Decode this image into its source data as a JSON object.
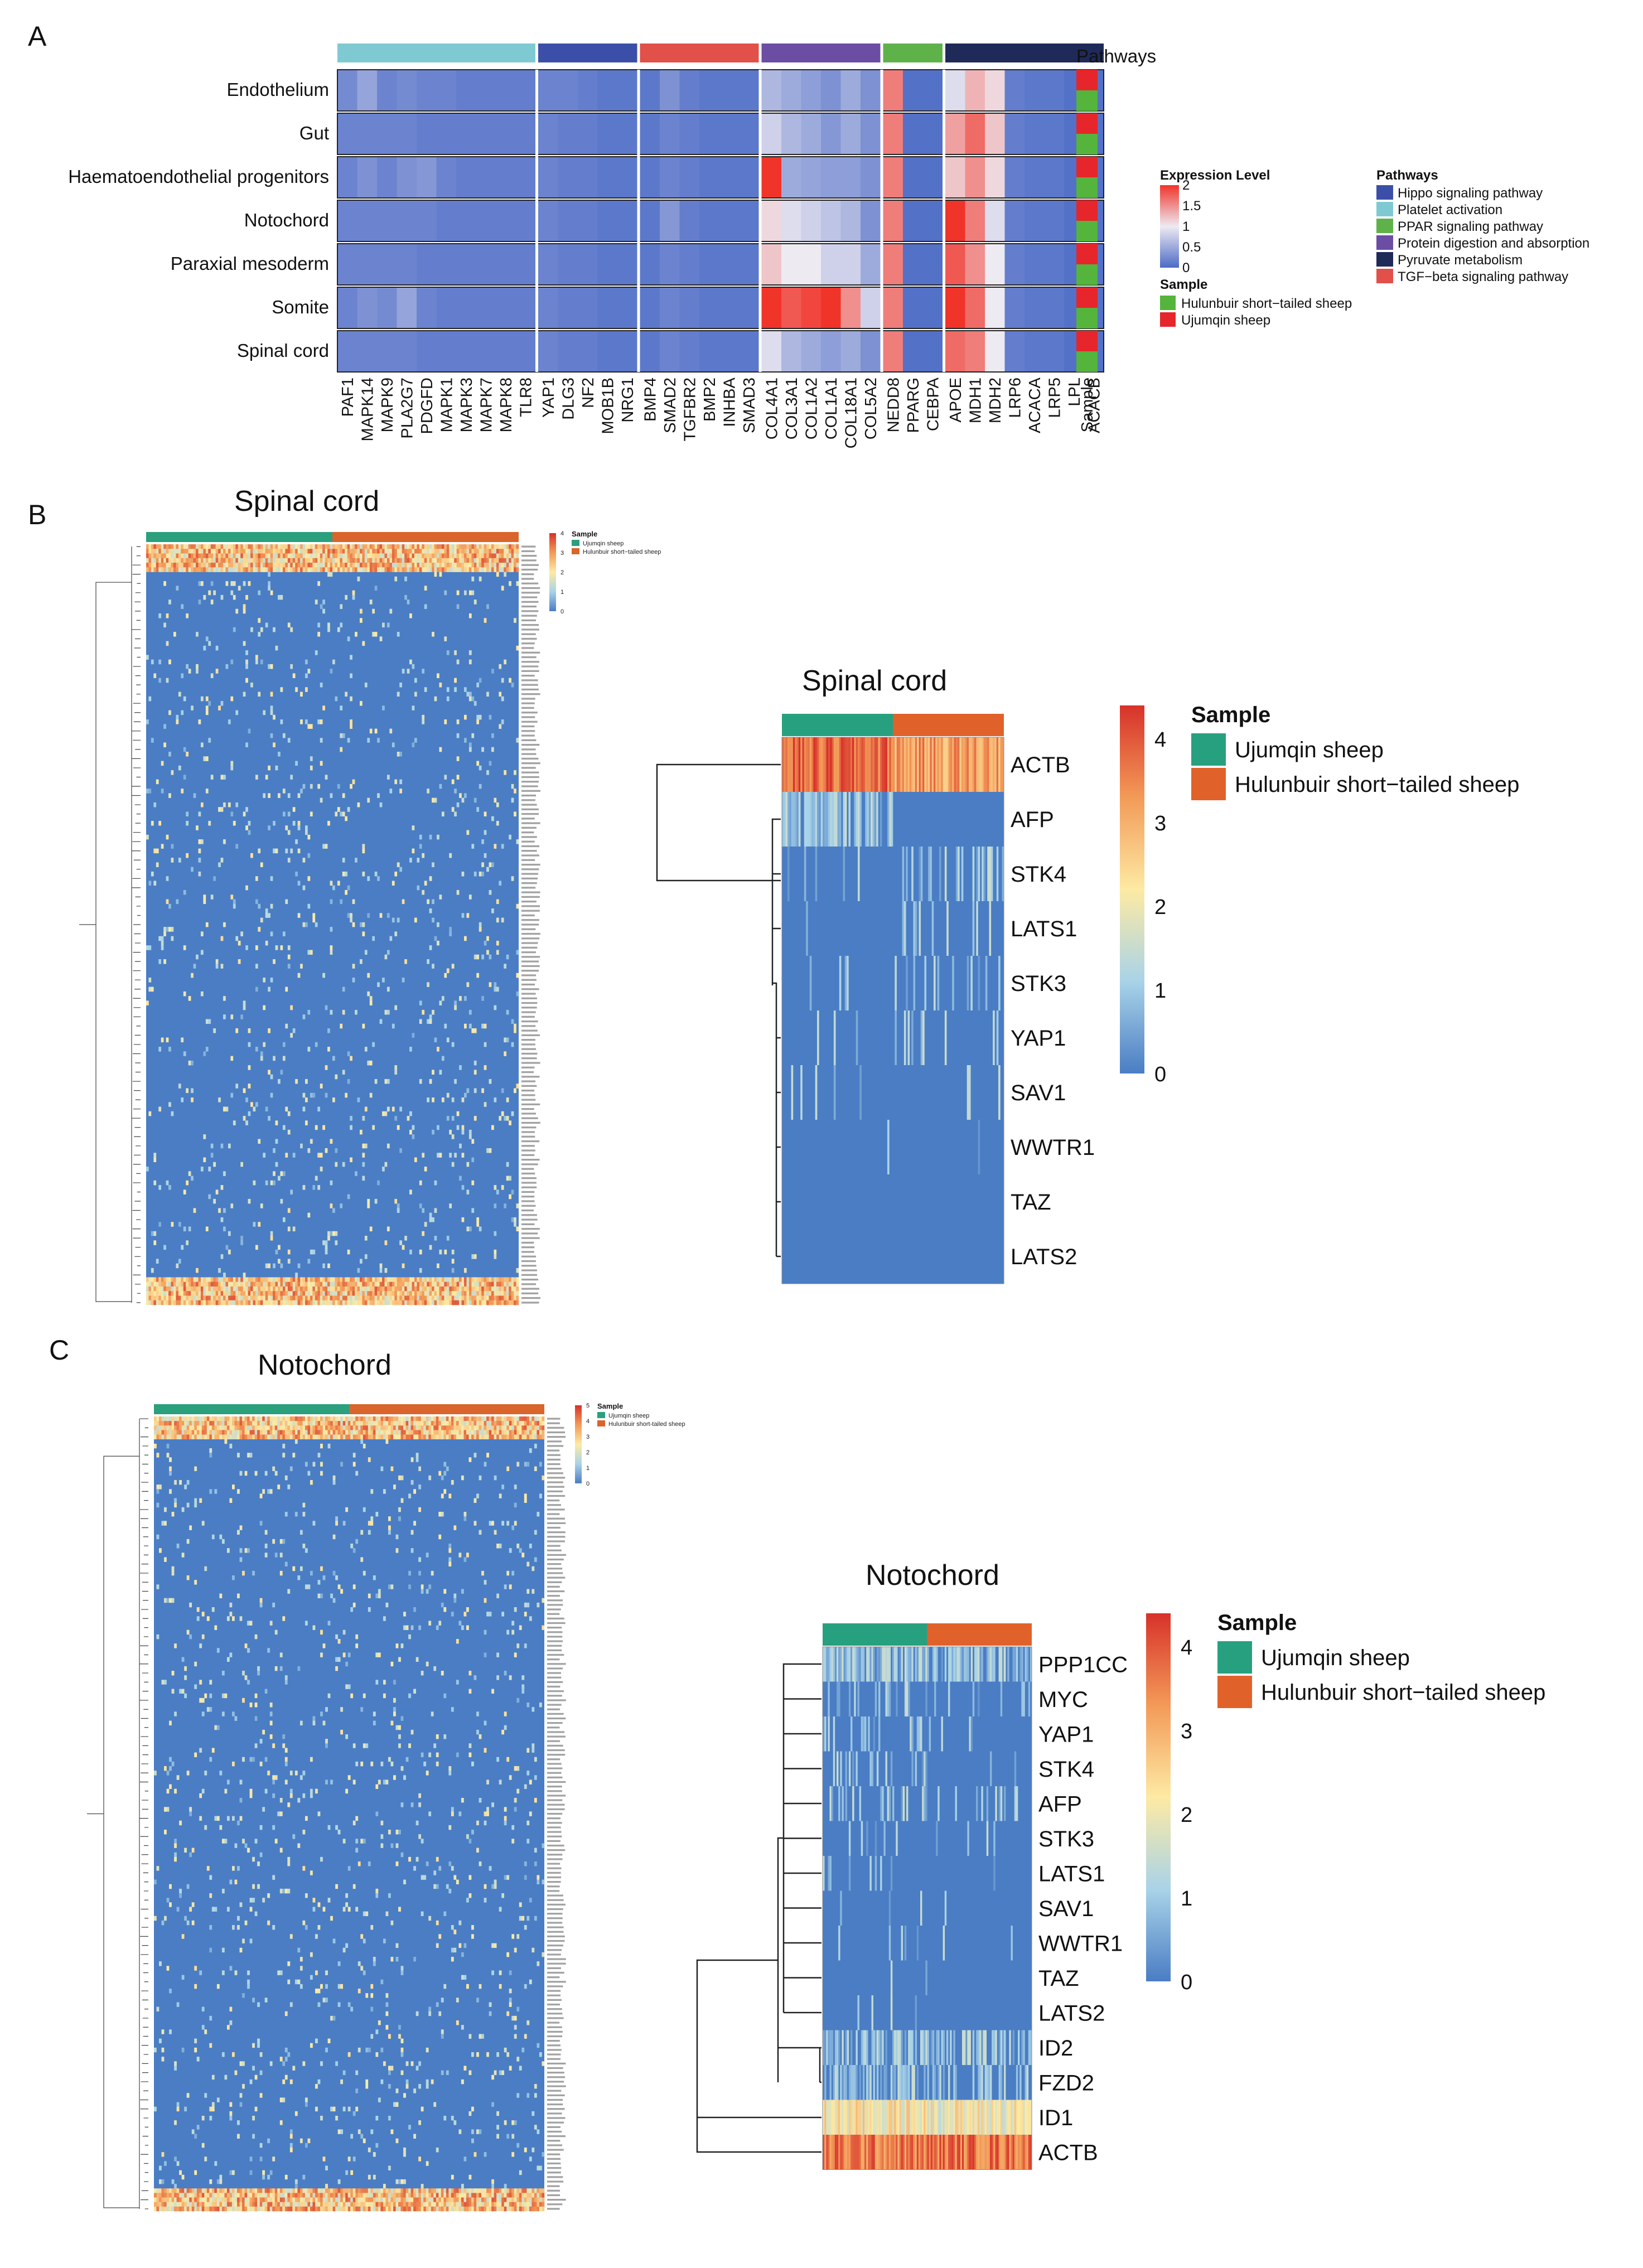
{
  "colors": {
    "heat_low": "#4c6bc6",
    "heat_mid": "#eeeaf2",
    "heat_high": "#f0342a",
    "rb_low": "#4a7dc4",
    "rb_mid": "#fdeaa4",
    "rb_high": "#d7322a",
    "ujumqin_top": "#27a07f",
    "hulunbuir_top": "#e0622a",
    "ujumqin_small": "#2aa07c",
    "hulunbuir_small": "#d9642c",
    "pathway_colors": {
      "Hippo signaling pathway": "#3c4fa8",
      "Platelet activation": "#7fcad2",
      "PPAR signaling pathway": "#5fb24a",
      "Protein digestion and absorption": "#6c4da4",
      "Pyruvate metabolism": "#1f2a59",
      "TGF-beta signaling pathway": "#e2504a"
    },
    "sample_colors_A": {
      "Hulunbuir short-tailed sheep": "#54b43c",
      "Ujumqin sheep": "#e6262a"
    }
  },
  "panel_labels": [
    "A",
    "B",
    "C"
  ],
  "chart_data": [
    {
      "type": "heatmap",
      "panel": "A",
      "rows": [
        "Endothelium",
        "Gut",
        "Haematoendothelial progenitors",
        "Notochord",
        "Paraxial mesoderm",
        "Somite",
        "Spinal cord"
      ],
      "columns": [
        "PAF1",
        "MAPK14",
        "MAPK9",
        "PLA2G7",
        "PDGFD",
        "MAPK1",
        "MAPK3",
        "MAPK7",
        "MAPK8",
        "TLR8",
        "YAP1",
        "DLG3",
        "NF2",
        "MOB1B",
        "NRG1",
        "BMP4",
        "SMAD2",
        "TGFBR2",
        "BMP2",
        "INHBA",
        "SMAD3",
        "COL4A1",
        "COL3A1",
        "COL1A2",
        "COL1A1",
        "COL18A1",
        "COL5A2",
        "NEDD8",
        "PPARG",
        "CEBPA",
        "APOE",
        "MDH1",
        "MDH2",
        "LRP6",
        "ACACA",
        "LRP5",
        "LPL",
        "ACACB"
      ],
      "column_groups": [
        {
          "pathway": "Platelet activation",
          "count": 10
        },
        {
          "pathway": "Hippo signaling pathway",
          "count": 5
        },
        {
          "pathway": "TGF-beta signaling pathway",
          "count": 6
        },
        {
          "pathway": "Protein digestion and absorption",
          "count": 6
        },
        {
          "pathway": "PPAR signaling pathway",
          "count": 3
        },
        {
          "pathway": "Pyruvate metabolism",
          "count": 8
        }
      ],
      "pathways_label": "Pathways",
      "sample_column_label": "Sample",
      "sample_annotation": [
        "Ujumqin sheep",
        "Hulunbuir short-tailed sheep"
      ],
      "values": [
        [
          0.25,
          0.45,
          0.2,
          0.25,
          0.2,
          0.2,
          0.15,
          0.15,
          0.15,
          0.15,
          0.2,
          0.2,
          0.15,
          0.1,
          0.1,
          0.1,
          0.3,
          0.15,
          0.1,
          0.1,
          0.1,
          0.6,
          0.5,
          0.4,
          0.3,
          0.5,
          0.3,
          1.6,
          0.05,
          0.05,
          0.9,
          1.3,
          1.1,
          0.15,
          0.1,
          0.1,
          0.05,
          0.05
        ],
        [
          0.2,
          0.2,
          0.2,
          0.2,
          0.15,
          0.15,
          0.15,
          0.15,
          0.15,
          0.15,
          0.2,
          0.15,
          0.15,
          0.1,
          0.1,
          0.1,
          0.2,
          0.15,
          0.1,
          0.1,
          0.1,
          0.8,
          0.6,
          0.5,
          0.35,
          0.5,
          0.3,
          1.6,
          0.05,
          0.05,
          1.4,
          1.7,
          1.2,
          0.15,
          0.1,
          0.1,
          0.05,
          0.05
        ],
        [
          0.2,
          0.3,
          0.2,
          0.3,
          0.35,
          0.2,
          0.15,
          0.15,
          0.15,
          0.15,
          0.2,
          0.15,
          0.15,
          0.1,
          0.1,
          0.1,
          0.2,
          0.15,
          0.1,
          0.1,
          0.1,
          2.0,
          0.5,
          0.45,
          0.4,
          0.4,
          0.3,
          1.6,
          0.05,
          0.05,
          1.2,
          1.5,
          1.1,
          0.15,
          0.1,
          0.1,
          0.05,
          0.05
        ],
        [
          0.2,
          0.2,
          0.2,
          0.2,
          0.2,
          0.15,
          0.15,
          0.15,
          0.15,
          0.15,
          0.2,
          0.15,
          0.15,
          0.1,
          0.1,
          0.1,
          0.35,
          0.15,
          0.1,
          0.1,
          0.1,
          1.1,
          0.9,
          0.8,
          0.7,
          0.6,
          0.3,
          1.6,
          0.05,
          0.05,
          2.0,
          1.6,
          0.9,
          0.15,
          0.1,
          0.1,
          0.05,
          0.05
        ],
        [
          0.2,
          0.2,
          0.2,
          0.2,
          0.15,
          0.15,
          0.15,
          0.15,
          0.15,
          0.15,
          0.2,
          0.15,
          0.15,
          0.1,
          0.1,
          0.1,
          0.2,
          0.15,
          0.1,
          0.1,
          0.1,
          1.2,
          1.0,
          1.0,
          0.8,
          0.8,
          0.5,
          1.6,
          0.05,
          0.05,
          1.8,
          1.5,
          1.0,
          0.15,
          0.1,
          0.1,
          0.05,
          0.05
        ],
        [
          0.2,
          0.3,
          0.25,
          0.45,
          0.2,
          0.15,
          0.15,
          0.15,
          0.15,
          0.15,
          0.2,
          0.15,
          0.15,
          0.1,
          0.1,
          0.1,
          0.2,
          0.15,
          0.1,
          0.1,
          0.1,
          2.0,
          1.8,
          1.9,
          2.0,
          1.5,
          0.8,
          1.6,
          0.05,
          0.05,
          2.0,
          1.7,
          1.0,
          0.15,
          0.1,
          0.1,
          0.05,
          0.05
        ],
        [
          0.2,
          0.2,
          0.2,
          0.2,
          0.15,
          0.15,
          0.15,
          0.15,
          0.15,
          0.15,
          0.2,
          0.15,
          0.15,
          0.1,
          0.1,
          0.1,
          0.2,
          0.15,
          0.1,
          0.1,
          0.1,
          0.9,
          0.6,
          0.5,
          0.4,
          0.5,
          0.3,
          1.6,
          0.05,
          0.05,
          1.7,
          1.6,
          1.0,
          0.15,
          0.1,
          0.1,
          0.05,
          0.05
        ]
      ],
      "legend_expression": {
        "title": "Expression Level",
        "ticks": [
          2,
          1.5,
          1,
          0.5,
          0
        ],
        "range": [
          0,
          2
        ]
      },
      "legend_pathways": {
        "title": "Pathways",
        "items": [
          "Hippo signaling pathway",
          "Platelet activation",
          "PPAR signaling pathway",
          "Protein digestion and absorption",
          "Pyruvate metabolism",
          "TGF−beta signaling pathway"
        ]
      },
      "legend_sample": {
        "title": "Sample",
        "items": [
          "Hulunbuir short−tailed sheep",
          "Ujumqin sheep"
        ]
      }
    },
    {
      "type": "heatmap",
      "panel": "B",
      "title": "Spinal cord",
      "genes": [
        "ACTB",
        "AFP",
        "STK4",
        "LATS1",
        "STK3",
        "YAP1",
        "SAV1",
        "WWTR1",
        "TAZ",
        "LATS2"
      ],
      "mean_expression_ujumqin": [
        3.8,
        0.9,
        0.1,
        0.05,
        0.05,
        0.05,
        0.05,
        0.05,
        0.0,
        0.0
      ],
      "mean_expression_hulunbuir": [
        3.2,
        0.0,
        0.3,
        0.2,
        0.2,
        0.15,
        0.05,
        0.05,
        0.05,
        0.0
      ],
      "legend": {
        "title": "Sample",
        "items": [
          "Ujumqin sheep",
          "Hulunbuir short−tailed sheep"
        ],
        "ticks": [
          4,
          3,
          2,
          1,
          0
        ],
        "range": [
          0,
          4.4
        ]
      },
      "small_heatmap_legend": {
        "title": "Sample",
        "items": [
          "Ujumqin sheep",
          "Hulunbuir short−tailed sheep"
        ],
        "ticks": [
          4,
          3,
          2,
          1,
          0
        ]
      }
    },
    {
      "type": "heatmap",
      "panel": "C",
      "title": "Notochord",
      "genes": [
        "PPP1CC",
        "MYC",
        "YAP1",
        "STK4",
        "AFP",
        "STK3",
        "LATS1",
        "SAV1",
        "WWTR1",
        "TAZ",
        "LATS2",
        "ID2",
        "FZD2",
        "ID1",
        "ACTB"
      ],
      "mean_expression_ujumqin": [
        1.0,
        0.3,
        0.3,
        0.2,
        0.3,
        0.15,
        0.15,
        0.1,
        0.1,
        0.05,
        0.05,
        0.8,
        0.6,
        2.2,
        3.6
      ],
      "mean_expression_hulunbuir": [
        0.8,
        0.2,
        0.15,
        0.1,
        0.1,
        0.1,
        0.1,
        0.05,
        0.05,
        0.0,
        0.0,
        0.7,
        0.5,
        2.1,
        3.7
      ],
      "legend": {
        "title": "Sample",
        "items": [
          "Ujumqin sheep",
          "Hulunbuir short−tailed sheep"
        ],
        "ticks": [
          4,
          3,
          2,
          1,
          0
        ],
        "range": [
          0,
          4.4
        ]
      },
      "small_heatmap_legend": {
        "title": "Sample",
        "items": [
          "Ujumqin sheep",
          "Hulunbuir short-tailed sheep"
        ],
        "ticks": [
          5,
          4,
          3,
          2,
          1,
          0
        ]
      }
    }
  ]
}
